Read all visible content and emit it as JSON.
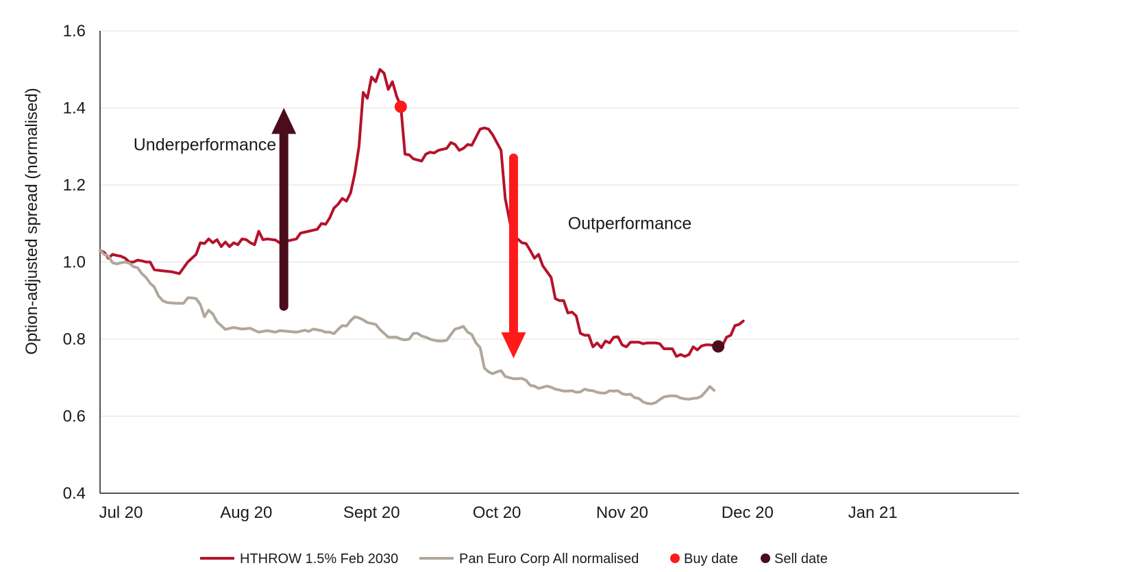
{
  "chart_data": {
    "type": "line",
    "title": "",
    "xlabel": "",
    "ylabel": "Option-adjusted spread (normalised)",
    "ylim": [
      0.4,
      1.6
    ],
    "yticks": [
      0.4,
      0.6,
      0.8,
      1.0,
      1.2,
      1.4,
      1.6
    ],
    "ytick_labels": [
      "0.4",
      "0.6",
      "0.8",
      "1.0",
      "1.2",
      "1.4",
      "1.6"
    ],
    "xlim": [
      0,
      220
    ],
    "xticks": [
      {
        "pos": 5,
        "label": "Jul 20"
      },
      {
        "pos": 35,
        "label": "Aug 20"
      },
      {
        "pos": 65,
        "label": "Sept 20"
      },
      {
        "pos": 95,
        "label": "Oct 20"
      },
      {
        "pos": 125,
        "label": "Nov 20"
      },
      {
        "pos": 155,
        "label": "Dec 20"
      },
      {
        "pos": 185,
        "label": "Jan 21"
      }
    ],
    "grid": "horizontal",
    "legend_position": "bottom",
    "series": [
      {
        "name": "HTHROW 1.5% Feb 2030",
        "color": "#b5122b",
        "points": [
          [
            0,
            1.03
          ],
          [
            1,
            1.025
          ],
          [
            2,
            1.01
          ],
          [
            3,
            1.02
          ],
          [
            4,
            1.017
          ],
          [
            5,
            1.015
          ],
          [
            6,
            1.01
          ],
          [
            7,
            1.0
          ],
          [
            8,
            1.0
          ],
          [
            9,
            1.005
          ],
          [
            10,
            1.003
          ],
          [
            11,
            1.0
          ],
          [
            12,
            1.0
          ],
          [
            13,
            0.98
          ],
          [
            15,
            0.977
          ],
          [
            17,
            0.975
          ],
          [
            19,
            0.97
          ],
          [
            21,
            1.0
          ],
          [
            23,
            1.02
          ],
          [
            24,
            1.05
          ],
          [
            25,
            1.048
          ],
          [
            26,
            1.06
          ],
          [
            27,
            1.05
          ],
          [
            28,
            1.058
          ],
          [
            29,
            1.04
          ],
          [
            30,
            1.052
          ],
          [
            31,
            1.04
          ],
          [
            32,
            1.05
          ],
          [
            33,
            1.045
          ],
          [
            34,
            1.06
          ],
          [
            35,
            1.058
          ],
          [
            36,
            1.05
          ],
          [
            37,
            1.045
          ],
          [
            38,
            1.08
          ],
          [
            39,
            1.058
          ],
          [
            40,
            1.06
          ],
          [
            42,
            1.057
          ],
          [
            43,
            1.05
          ],
          [
            45,
            1.055
          ],
          [
            47,
            1.06
          ],
          [
            48,
            1.075
          ],
          [
            50,
            1.08
          ],
          [
            52,
            1.085
          ],
          [
            53,
            1.1
          ],
          [
            54,
            1.098
          ],
          [
            55,
            1.115
          ],
          [
            56,
            1.14
          ],
          [
            57,
            1.15
          ],
          [
            58,
            1.165
          ],
          [
            59,
            1.158
          ],
          [
            60,
            1.18
          ],
          [
            61,
            1.23
          ],
          [
            62,
            1.3
          ],
          [
            63,
            1.44
          ],
          [
            64,
            1.425
          ],
          [
            65,
            1.48
          ],
          [
            66,
            1.468
          ],
          [
            67,
            1.5
          ],
          [
            68,
            1.49
          ],
          [
            69,
            1.448
          ],
          [
            70,
            1.468
          ],
          [
            71,
            1.43
          ],
          [
            72,
            1.405
          ],
          [
            73,
            1.28
          ],
          [
            74,
            1.278
          ],
          [
            75,
            1.268
          ],
          [
            77,
            1.262
          ],
          [
            78,
            1.28
          ],
          [
            79,
            1.285
          ],
          [
            80,
            1.283
          ],
          [
            81,
            1.29
          ],
          [
            83,
            1.295
          ],
          [
            84,
            1.31
          ],
          [
            85,
            1.305
          ],
          [
            86,
            1.29
          ],
          [
            87,
            1.295
          ],
          [
            88,
            1.305
          ],
          [
            89,
            1.303
          ],
          [
            91,
            1.345
          ],
          [
            92,
            1.348
          ],
          [
            93,
            1.345
          ],
          [
            94,
            1.33
          ],
          [
            95,
            1.31
          ],
          [
            96,
            1.29
          ],
          [
            97,
            1.165
          ],
          [
            98,
            1.11
          ],
          [
            99,
            1.055
          ],
          [
            100,
            1.06
          ],
          [
            101,
            1.05
          ],
          [
            102,
            1.048
          ],
          [
            103,
            1.03
          ],
          [
            104,
            1.01
          ],
          [
            105,
            1.02
          ],
          [
            106,
            0.99
          ],
          [
            107,
            0.975
          ],
          [
            108,
            0.96
          ],
          [
            109,
            0.905
          ],
          [
            110,
            0.9
          ],
          [
            111,
            0.9
          ],
          [
            112,
            0.868
          ],
          [
            113,
            0.87
          ],
          [
            114,
            0.86
          ],
          [
            115,
            0.815
          ],
          [
            116,
            0.81
          ],
          [
            117,
            0.81
          ],
          [
            118,
            0.78
          ],
          [
            119,
            0.79
          ],
          [
            120,
            0.778
          ],
          [
            121,
            0.795
          ],
          [
            122,
            0.79
          ],
          [
            123,
            0.805
          ],
          [
            124,
            0.806
          ],
          [
            125,
            0.785
          ],
          [
            126,
            0.78
          ],
          [
            127,
            0.792
          ],
          [
            129,
            0.792
          ],
          [
            130,
            0.788
          ],
          [
            131,
            0.79
          ],
          [
            133,
            0.79
          ],
          [
            134,
            0.788
          ],
          [
            135,
            0.775
          ],
          [
            137,
            0.775
          ],
          [
            138,
            0.755
          ],
          [
            139,
            0.76
          ],
          [
            140,
            0.755
          ],
          [
            141,
            0.76
          ],
          [
            142,
            0.78
          ],
          [
            143,
            0.772
          ],
          [
            144,
            0.782
          ],
          [
            145,
            0.785
          ],
          [
            146,
            0.785
          ],
          [
            147,
            0.783
          ],
          [
            148,
            0.78
          ],
          [
            149,
            0.783
          ],
          [
            150,
            0.805
          ],
          [
            151,
            0.81
          ],
          [
            152,
            0.835
          ],
          [
            153,
            0.838
          ],
          [
            154,
            0.847
          ]
        ]
      },
      {
        "name": "Pan Euro Corp All normalised",
        "color": "#b0a79b",
        "points": [
          [
            0,
            1.03
          ],
          [
            1,
            1.02
          ],
          [
            2,
            1.015
          ],
          [
            3,
            0.998
          ],
          [
            4,
            0.995
          ],
          [
            5,
            0.998
          ],
          [
            6,
            1.0
          ],
          [
            7,
            0.997
          ],
          [
            8,
            0.988
          ],
          [
            9,
            0.985
          ],
          [
            10,
            0.97
          ],
          [
            11,
            0.96
          ],
          [
            12,
            0.945
          ],
          [
            13,
            0.935
          ],
          [
            14,
            0.912
          ],
          [
            15,
            0.9
          ],
          [
            16,
            0.895
          ],
          [
            18,
            0.893
          ],
          [
            20,
            0.893
          ],
          [
            21,
            0.907
          ],
          [
            22,
            0.907
          ],
          [
            23,
            0.905
          ],
          [
            24,
            0.89
          ],
          [
            25,
            0.858
          ],
          [
            26,
            0.875
          ],
          [
            27,
            0.865
          ],
          [
            28,
            0.845
          ],
          [
            29,
            0.835
          ],
          [
            30,
            0.825
          ],
          [
            31,
            0.828
          ],
          [
            32,
            0.83
          ],
          [
            34,
            0.826
          ],
          [
            36,
            0.828
          ],
          [
            38,
            0.818
          ],
          [
            40,
            0.822
          ],
          [
            42,
            0.818
          ],
          [
            43,
            0.822
          ],
          [
            45,
            0.82
          ],
          [
            47,
            0.818
          ],
          [
            49,
            0.823
          ],
          [
            50,
            0.82
          ],
          [
            51,
            0.826
          ],
          [
            53,
            0.822
          ],
          [
            54,
            0.818
          ],
          [
            55,
            0.818
          ],
          [
            56,
            0.814
          ],
          [
            57,
            0.825
          ],
          [
            58,
            0.835
          ],
          [
            59,
            0.834
          ],
          [
            60,
            0.848
          ],
          [
            61,
            0.858
          ],
          [
            62,
            0.855
          ],
          [
            63,
            0.85
          ],
          [
            64,
            0.843
          ],
          [
            66,
            0.838
          ],
          [
            67,
            0.825
          ],
          [
            68,
            0.815
          ],
          [
            69,
            0.805
          ],
          [
            71,
            0.805
          ],
          [
            72,
            0.8
          ],
          [
            73,
            0.798
          ],
          [
            74,
            0.8
          ],
          [
            75,
            0.815
          ],
          [
            76,
            0.815
          ],
          [
            77,
            0.808
          ],
          [
            78,
            0.805
          ],
          [
            79,
            0.8
          ],
          [
            80,
            0.797
          ],
          [
            81,
            0.795
          ],
          [
            82,
            0.795
          ],
          [
            83,
            0.797
          ],
          [
            84,
            0.812
          ],
          [
            85,
            0.826
          ],
          [
            86,
            0.829
          ],
          [
            87,
            0.833
          ],
          [
            88,
            0.818
          ],
          [
            89,
            0.812
          ],
          [
            90,
            0.79
          ],
          [
            91,
            0.778
          ],
          [
            92,
            0.725
          ],
          [
            93,
            0.715
          ],
          [
            94,
            0.71
          ],
          [
            95,
            0.715
          ],
          [
            96,
            0.718
          ],
          [
            97,
            0.703
          ],
          [
            98,
            0.7
          ],
          [
            99,
            0.697
          ],
          [
            100,
            0.697
          ],
          [
            101,
            0.698
          ],
          [
            102,
            0.693
          ],
          [
            103,
            0.68
          ],
          [
            104,
            0.678
          ],
          [
            105,
            0.672
          ],
          [
            106,
            0.675
          ],
          [
            107,
            0.678
          ],
          [
            108,
            0.675
          ],
          [
            109,
            0.67
          ],
          [
            110,
            0.668
          ],
          [
            111,
            0.665
          ],
          [
            112,
            0.665
          ],
          [
            113,
            0.666
          ],
          [
            114,
            0.662
          ],
          [
            115,
            0.663
          ],
          [
            116,
            0.67
          ],
          [
            117,
            0.667
          ],
          [
            118,
            0.666
          ],
          [
            119,
            0.662
          ],
          [
            120,
            0.66
          ],
          [
            121,
            0.66
          ],
          [
            122,
            0.666
          ],
          [
            123,
            0.665
          ],
          [
            124,
            0.666
          ],
          [
            125,
            0.658
          ],
          [
            126,
            0.656
          ],
          [
            127,
            0.657
          ],
          [
            128,
            0.648
          ],
          [
            129,
            0.646
          ],
          [
            130,
            0.637
          ],
          [
            131,
            0.633
          ],
          [
            132,
            0.632
          ],
          [
            133,
            0.635
          ],
          [
            134,
            0.643
          ],
          [
            135,
            0.65
          ],
          [
            136,
            0.652
          ],
          [
            137,
            0.653
          ],
          [
            138,
            0.652
          ],
          [
            139,
            0.647
          ],
          [
            140,
            0.645
          ],
          [
            141,
            0.644
          ],
          [
            142,
            0.646
          ],
          [
            143,
            0.647
          ],
          [
            144,
            0.652
          ],
          [
            145,
            0.664
          ],
          [
            146,
            0.677
          ],
          [
            147,
            0.667
          ]
        ]
      }
    ],
    "markers": [
      {
        "name": "Buy date",
        "x": 72,
        "y": 1.403,
        "color": "#ff1a1a"
      },
      {
        "name": "Sell date",
        "x": 148,
        "y": 0.781,
        "color": "#4a0d1c"
      }
    ],
    "annotations": [
      {
        "text": "Underperformance",
        "x": 8,
        "y": 1.29
      },
      {
        "text": "Outperformance",
        "x": 112,
        "y": 1.085
      }
    ],
    "arrows": [
      {
        "direction": "up",
        "x": 44,
        "from": 0.885,
        "to": 1.4,
        "color": "#4a0d1c"
      },
      {
        "direction": "down",
        "x": 99,
        "from": 1.27,
        "to": 0.75,
        "color": "#ff1a1a"
      }
    ]
  },
  "legend": [
    {
      "label": "HTHROW 1.5% Feb 2030",
      "kind": "line",
      "color": "#b5122b"
    },
    {
      "label": "Pan Euro Corp All normalised",
      "kind": "line",
      "color": "#b0a79b"
    },
    {
      "label": "Buy date",
      "kind": "dot",
      "color": "#ff1a1a"
    },
    {
      "label": "Sell date",
      "kind": "dot",
      "color": "#4a0d1c"
    }
  ]
}
